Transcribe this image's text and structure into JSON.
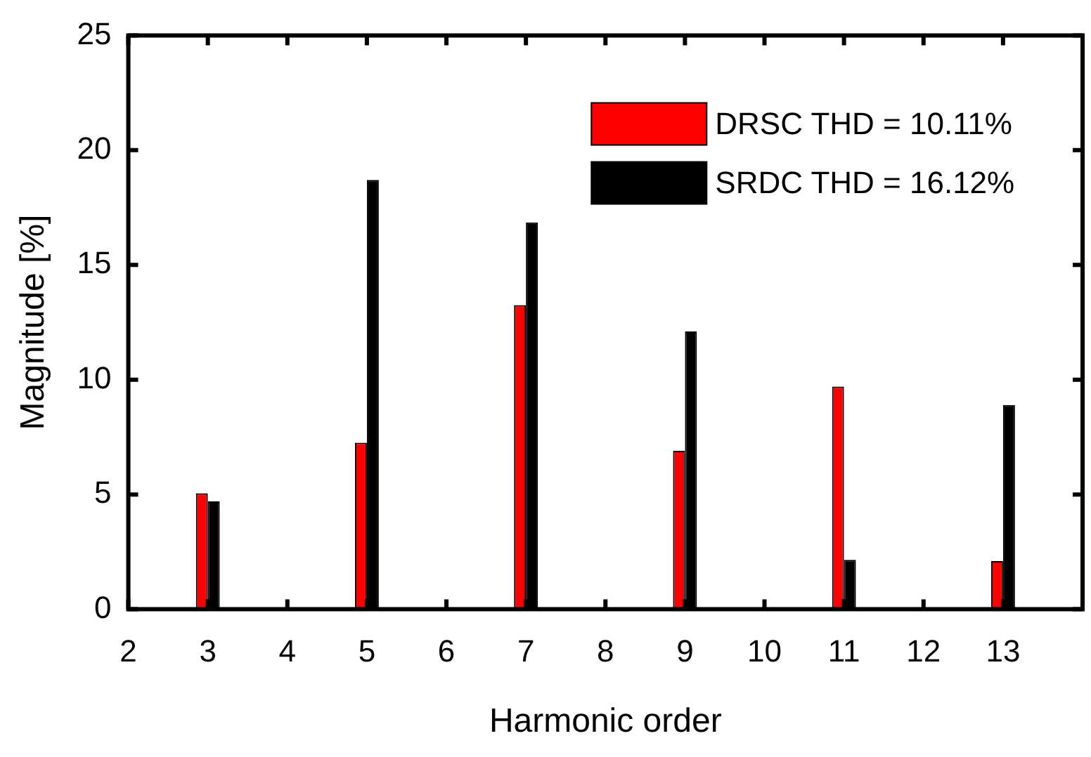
{
  "chart_data": {
    "type": "bar",
    "xlabel": "Harmonic order",
    "ylabel": "Magnitude [%]",
    "x": [
      3,
      5,
      7,
      9,
      11,
      13
    ],
    "series": [
      {
        "name": "DRSC THD = 10.11%",
        "color": "#ff0000",
        "values": [
          5.05,
          7.25,
          13.25,
          6.9,
          9.7,
          2.1
        ]
      },
      {
        "name": "SRDC THD = 16.12%",
        "color": "#000000",
        "values": [
          4.7,
          18.7,
          16.85,
          12.1,
          2.15,
          8.9
        ]
      }
    ],
    "xlim": [
      2,
      14
    ],
    "xticks": [
      2,
      3,
      4,
      5,
      6,
      7,
      8,
      9,
      10,
      11,
      12,
      13
    ],
    "ylim": [
      0,
      25
    ],
    "yticks": [
      0,
      5,
      10,
      15,
      20,
      25
    ],
    "grid": false,
    "legend": "top right"
  }
}
